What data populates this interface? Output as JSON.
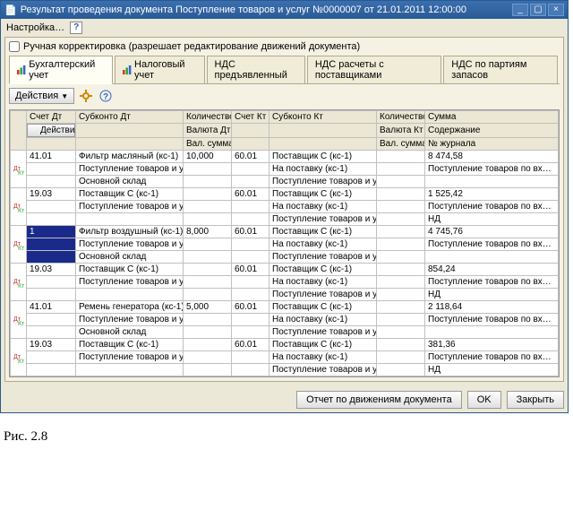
{
  "window": {
    "title": "Результат проведения документа Поступление товаров и услуг №0000007 от 21.01.2011 12:00:00",
    "menu_settings": "Настройка…",
    "help": "?"
  },
  "checkbox": {
    "label": "Ручная корректировка (разрешает редактирование движений документа)"
  },
  "tabs": {
    "t0": "Бухгалтерский учет",
    "t1": "Налоговый учет",
    "t2": "НДС предъявленный",
    "t3": "НДС расчеты с поставщиками",
    "t4": "НДС по партиям запасов"
  },
  "actions_btn": "Действия",
  "headers": {
    "r1c1": "Счет Дт",
    "r1c2": "Субконто Дт",
    "r1c3": "Количество Дт",
    "r1c4": "Счет Кт",
    "r1c5": "Субконто Кт",
    "r1c6": "Количество Кт",
    "r1c7": "Сумма",
    "r2c1": "Действия",
    "r2c3": "Валюта Дт",
    "r2c6": "Валюта Кт",
    "r2c7": "Содержание",
    "r3c3": "Вал. сумма Дт",
    "r3c6": "Вал. сумма Кт",
    "r3c7": "№ журнала"
  },
  "rows": [
    {
      "acc_dt": "41.01",
      "sub_dt1": "Фильтр масляный (кс-1)",
      "qty_dt": "10,000",
      "acc_kt": "60.01",
      "sub_kt1": "Поставщик С (кс-1)",
      "sum": "8 474,58",
      "sub_dt2": "Поступление товаров и ус…",
      "sub_kt2": "На поставку (кс-1)",
      "desc2": "Поступление товаров по вх…",
      "sub_dt3": "Основной склад",
      "sub_kt3": "Поступление товаров и ус…"
    },
    {
      "acc_dt": "19.03",
      "sub_dt1": "Поставщик С (кс-1)",
      "qty_dt": "",
      "acc_kt": "60.01",
      "sub_kt1": "Поставщик С (кс-1)",
      "sum": "1 525,42",
      "sub_dt2": "Поступление товаров и ус…",
      "sub_kt2": "На поставку (кс-1)",
      "desc2": "Поступление товаров по вх…",
      "sub_dt3": "",
      "sub_kt3": "Поступление товаров и ус…",
      "desc3": "НД"
    },
    {
      "acc_dt": "1",
      "sel": true,
      "sub_dt1": "Фильтр воздушный (кс-1)",
      "qty_dt": "8,000",
      "acc_kt": "60.01",
      "sub_kt1": "Поставщик С (кс-1)",
      "sum": "4 745,76",
      "sub_dt2": "Поступление товаров и ус…",
      "sub_kt2": "На поставку (кс-1)",
      "desc2": "Поступление товаров по вх…",
      "sub_dt3": "Основной склад",
      "sub_kt3": "Поступление товаров и ус…"
    },
    {
      "acc_dt": "19.03",
      "sub_dt1": "Поставщик С (кс-1)",
      "qty_dt": "",
      "acc_kt": "60.01",
      "sub_kt1": "Поставщик С (кс-1)",
      "sum": "854,24",
      "sub_dt2": "Поступление товаров и ус…",
      "sub_kt2": "На поставку (кс-1)",
      "desc2": "Поступление товаров по вх…",
      "sub_dt3": "",
      "sub_kt3": "Поступление товаров и ус…",
      "desc3": "НД"
    },
    {
      "acc_dt": "41.01",
      "sub_dt1": "Ремень генератора (кс-1)",
      "qty_dt": "5,000",
      "acc_kt": "60.01",
      "sub_kt1": "Поставщик С (кс-1)",
      "sum": "2 118,64",
      "sub_dt2": "Поступление товаров и ус…",
      "sub_kt2": "На поставку (кс-1)",
      "desc2": "Поступление товаров по вх…",
      "sub_dt3": "Основной склад",
      "sub_kt3": "Поступление товаров и ус…"
    },
    {
      "acc_dt": "19.03",
      "sub_dt1": "Поставщик С (кс-1)",
      "qty_dt": "",
      "acc_kt": "60.01",
      "sub_kt1": "Поставщик С (кс-1)",
      "sum": "381,36",
      "sub_dt2": "Поступление товаров и ус…",
      "sub_kt2": "На поставку (кс-1)",
      "desc2": "Поступление товаров по вх…",
      "sub_dt3": "",
      "sub_kt3": "Поступление товаров и ус…",
      "desc3": "НД"
    }
  ],
  "footer": {
    "report": "Отчет по движениям документа",
    "ok": "OK",
    "close": "Закрыть"
  },
  "figure_caption": "Рис. 2.8"
}
